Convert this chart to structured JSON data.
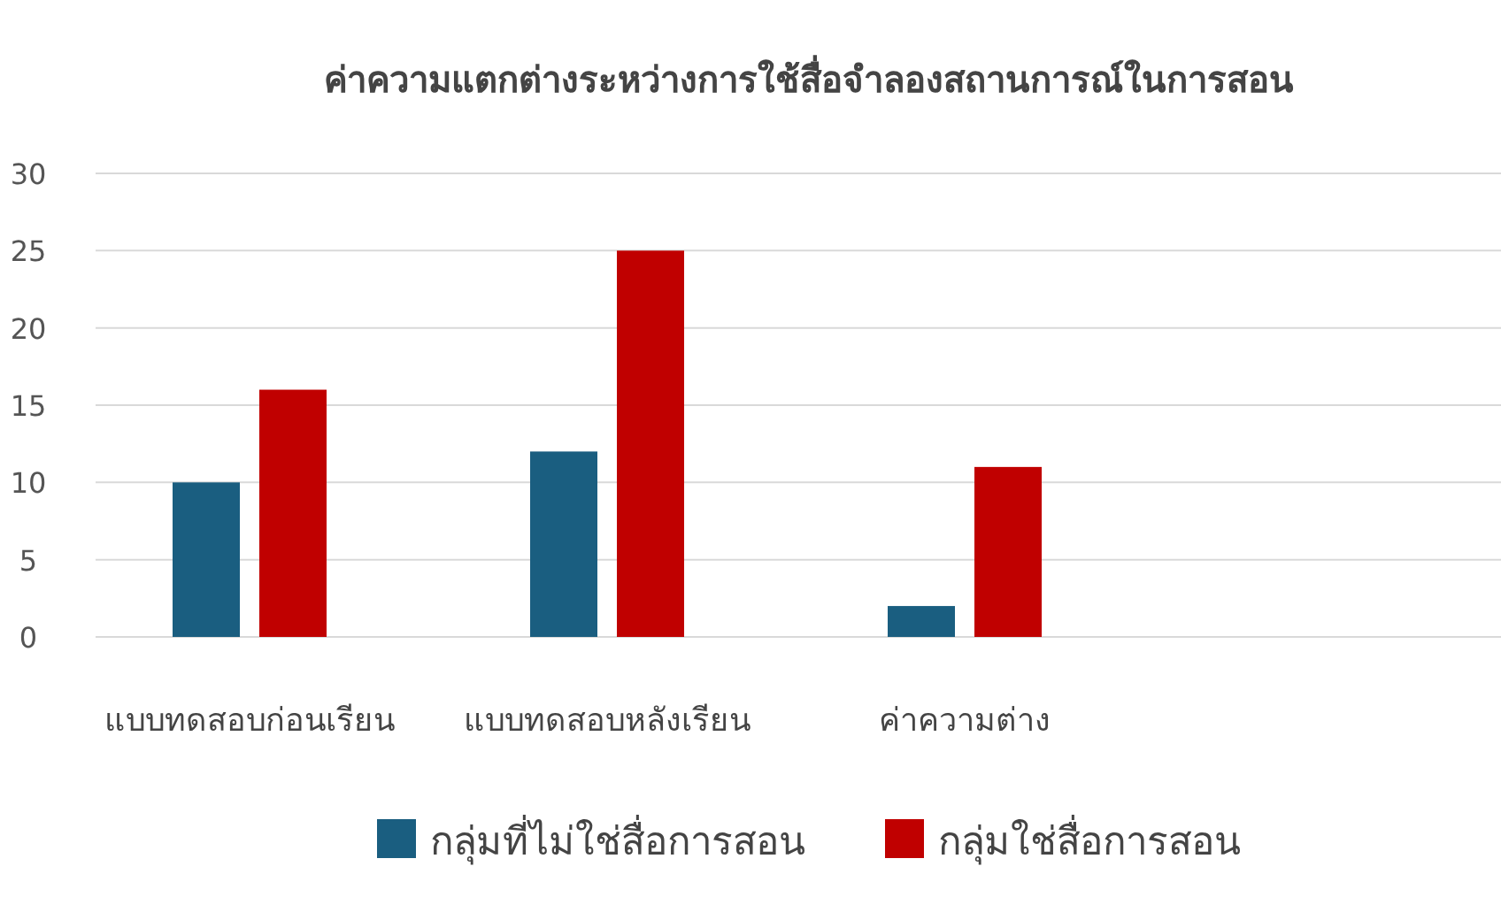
{
  "chart_data": {
    "type": "bar",
    "title": "ค่าความแตกต่างระหว่างการใช้สื่อจำลองสถานการณ์ในการสอน",
    "categories": [
      "แบบทดสอบก่อนเรียน",
      "แบบทดสอบหลังเรียน",
      "ค่าความต่าง",
      null
    ],
    "series": [
      {
        "name": "กลุ่มที่ไม่ใช่สื่อการสอน",
        "color": "#1a5e80",
        "values": [
          10,
          12,
          2,
          null
        ]
      },
      {
        "name": "กลุ่มใช่สื่อการสอน",
        "color": "#c00000",
        "values": [
          16,
          25,
          11,
          null
        ]
      }
    ],
    "ylim": [
      0,
      30
    ],
    "yticks": [
      0,
      5,
      10,
      15,
      20,
      25,
      30
    ],
    "grid": "y",
    "legend": "bottom"
  }
}
